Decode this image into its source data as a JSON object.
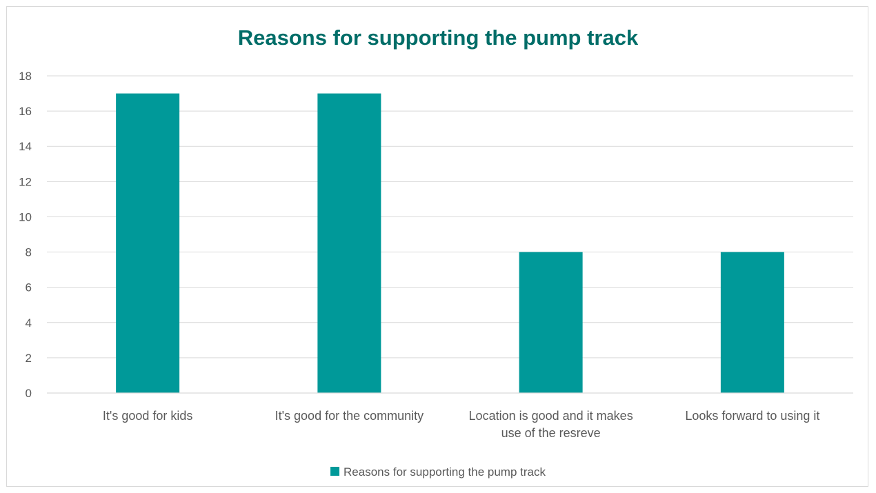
{
  "chart_data": {
    "type": "bar",
    "title": "Reasons for supporting the pump track",
    "categories": [
      [
        "It's good for kids"
      ],
      [
        "It's good for the community"
      ],
      [
        "Location is good and it makes",
        "use of the resreve"
      ],
      [
        "Looks forward to using it"
      ]
    ],
    "series": [
      {
        "name": "Reasons for supporting the pump track",
        "values": [
          17,
          17,
          8,
          8
        ]
      }
    ],
    "xlabel": "",
    "ylabel": "",
    "ylim": [
      0,
      18
    ],
    "yticks": [
      0,
      2,
      4,
      6,
      8,
      10,
      12,
      14,
      16,
      18
    ],
    "grid": true,
    "legend_position": "bottom",
    "colors": {
      "bar": "#009999",
      "title": "#006d68"
    }
  }
}
